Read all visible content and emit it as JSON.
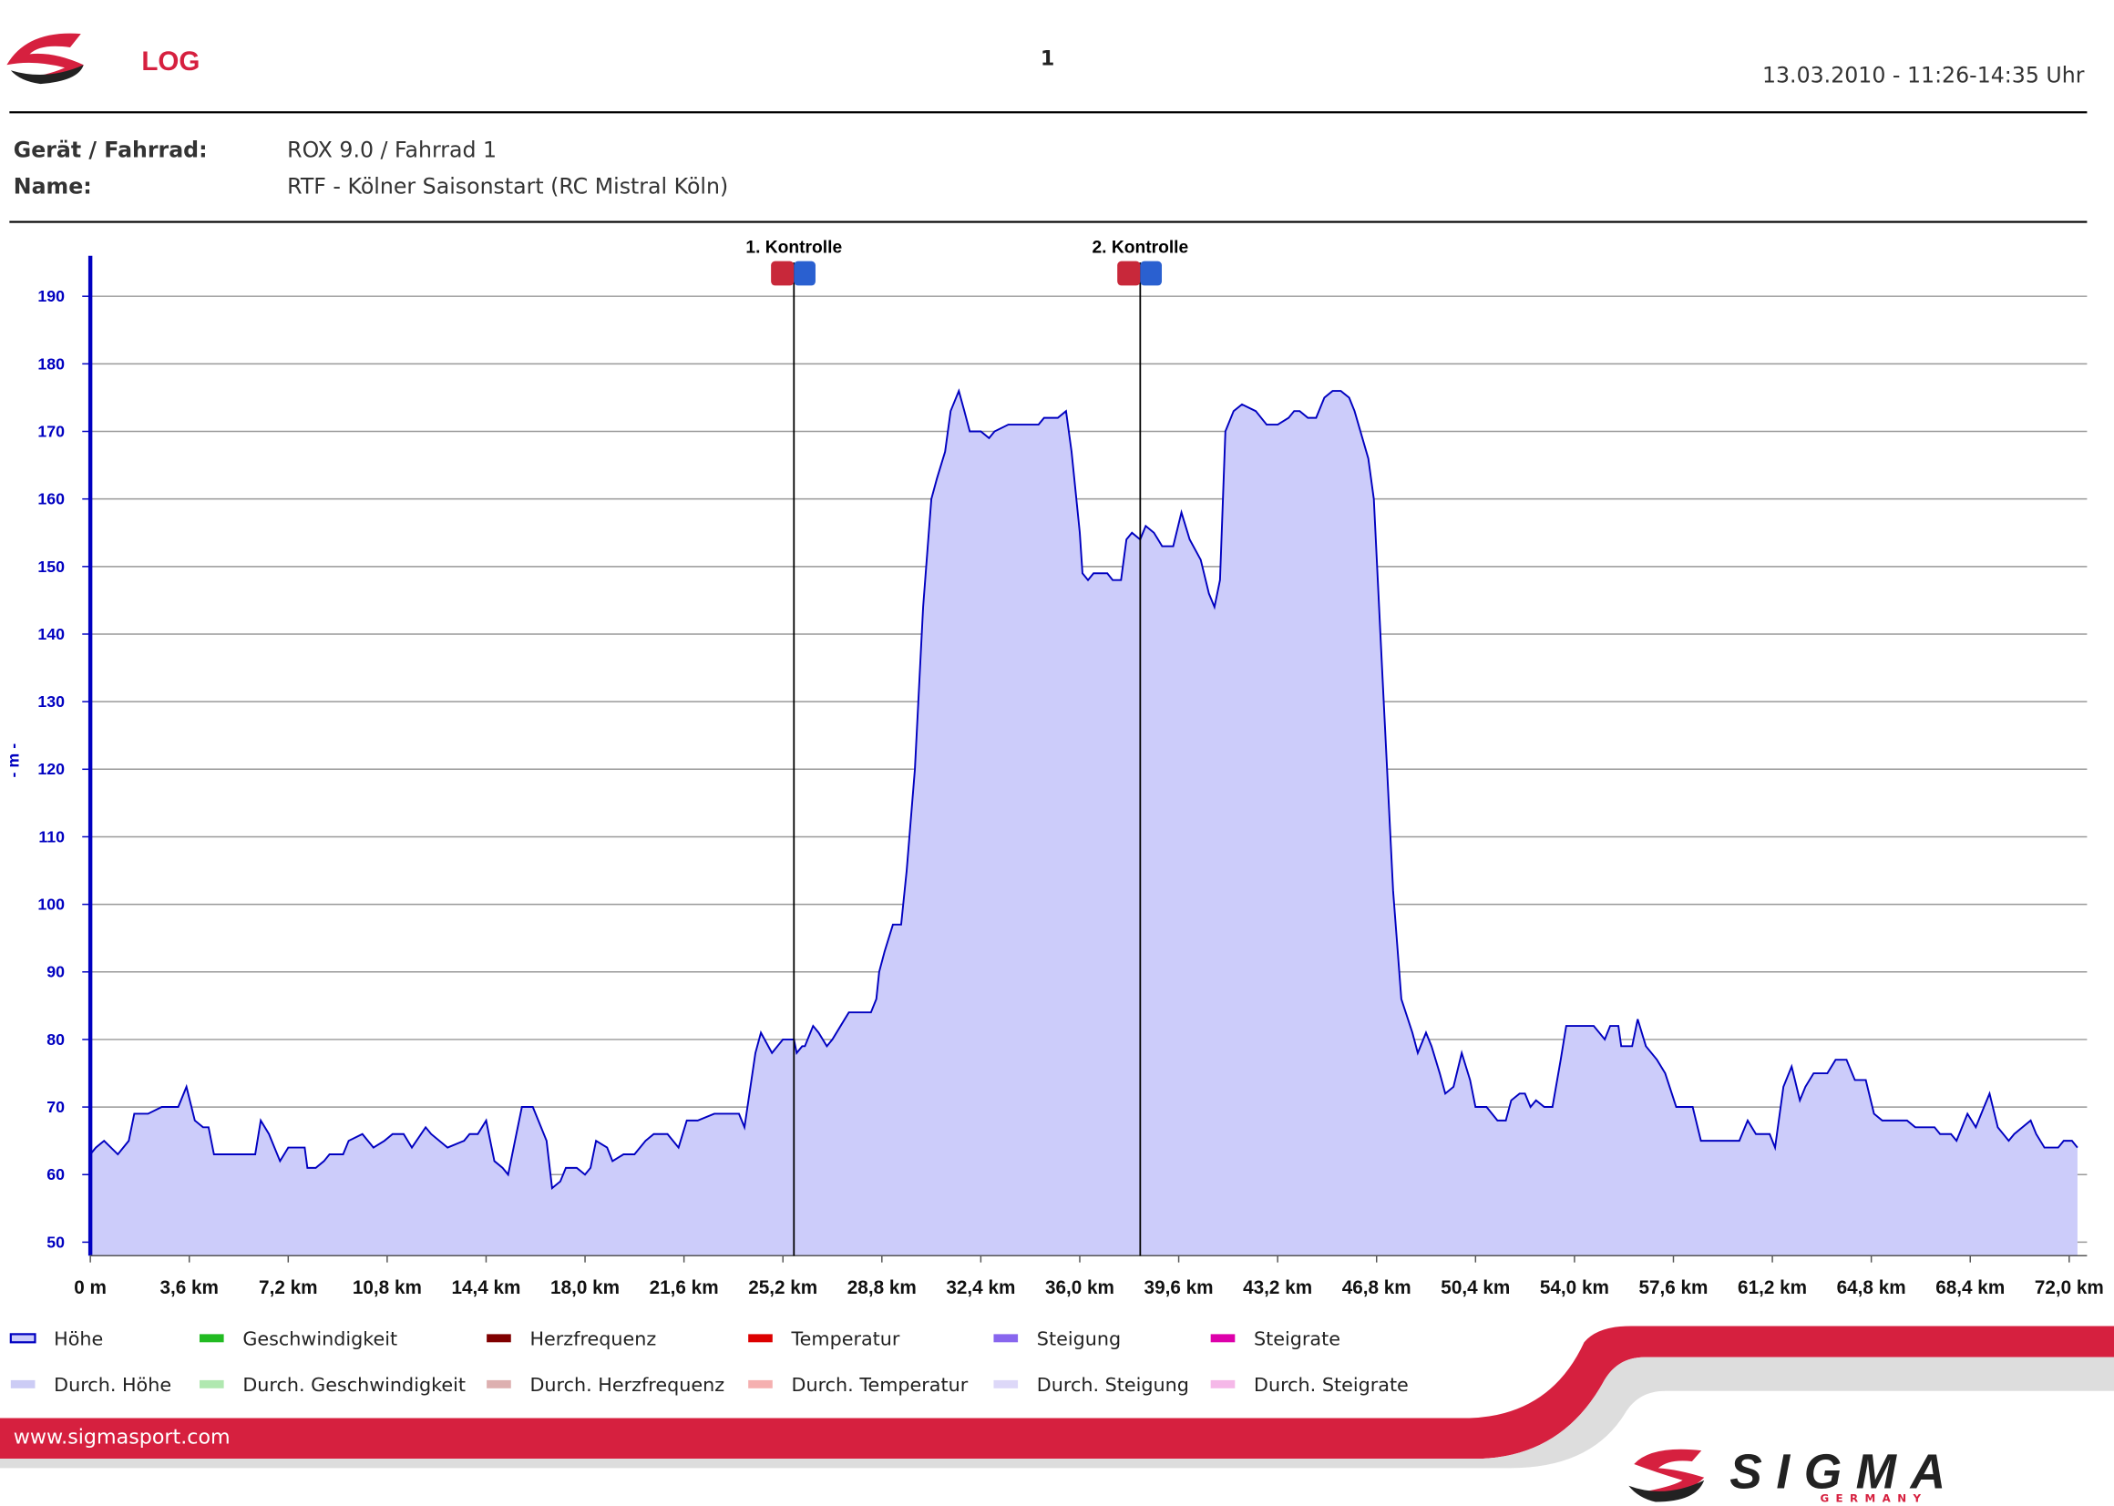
{
  "header": {
    "brand": "LOG",
    "page": "1",
    "date": "13.03.2010 - 11:26-14:35 Uhr"
  },
  "info": [
    {
      "label": "Gerät / Fahrrad:",
      "value": "ROX 9.0 / Fahrrad 1"
    },
    {
      "label": "Name:",
      "value": "RTF - Kölner Saisonstart (RC Mistral Köln)"
    }
  ],
  "chart_data": {
    "type": "area",
    "ylabel": "- m -",
    "xlim": [
      0,
      72.6
    ],
    "ylim": [
      48,
      196
    ],
    "yticks": [
      50,
      60,
      70,
      80,
      90,
      100,
      110,
      120,
      130,
      140,
      150,
      160,
      170,
      180,
      190
    ],
    "xticks": [
      {
        "value": 0,
        "label": "0 m"
      },
      {
        "value": 3.6,
        "label": "3,6 km"
      },
      {
        "value": 7.2,
        "label": "7,2 km"
      },
      {
        "value": 10.8,
        "label": "10,8 km"
      },
      {
        "value": 14.4,
        "label": "14,4 km"
      },
      {
        "value": 18,
        "label": "18,0 km"
      },
      {
        "value": 21.6,
        "label": "21,6 km"
      },
      {
        "value": 25.2,
        "label": "25,2 km"
      },
      {
        "value": 28.8,
        "label": "28,8 km"
      },
      {
        "value": 32.4,
        "label": "32,4 km"
      },
      {
        "value": 36,
        "label": "36,0 km"
      },
      {
        "value": 39.6,
        "label": "39,6 km"
      },
      {
        "value": 43.2,
        "label": "43,2 km"
      },
      {
        "value": 46.8,
        "label": "46,8 km"
      },
      {
        "value": 50.4,
        "label": "50,4 km"
      },
      {
        "value": 54,
        "label": "54,0 km"
      },
      {
        "value": 57.6,
        "label": "57,6 km"
      },
      {
        "value": 61.2,
        "label": "61,2 km"
      },
      {
        "value": 64.8,
        "label": "64,8 km"
      },
      {
        "value": 68.4,
        "label": "68,4 km"
      },
      {
        "value": 72,
        "label": "72,0 km"
      }
    ],
    "grid": true,
    "annotations": [
      {
        "x": 25.6,
        "text": "1. Kontrolle"
      },
      {
        "x": 38.2,
        "text": "2. Kontrolle"
      }
    ],
    "series": [
      {
        "name": "Höhe",
        "color": "#0000c0",
        "fill": "#ccccfa",
        "x": [
          0,
          0.2,
          0.5,
          1.0,
          1.4,
          1.6,
          2.1,
          2.6,
          3.2,
          3.5,
          3.8,
          4.1,
          4.3,
          4.5,
          5.1,
          6.0,
          6.2,
          6.5,
          6.7,
          6.9,
          7.2,
          7.8,
          7.9,
          8.2,
          8.5,
          8.7,
          9.2,
          9.4,
          9.9,
          10.3,
          10.7,
          11.0,
          11.4,
          11.7,
          12.2,
          12.4,
          13.0,
          13.6,
          13.8,
          14.1,
          14.4,
          14.5,
          14.7,
          15.0,
          15.2,
          15.5,
          15.7,
          16.1,
          16.3,
          16.6,
          16.8,
          17.1,
          17.3,
          17.7,
          18.0,
          18.2,
          18.4,
          18.8,
          19.0,
          19.4,
          19.8,
          20.2,
          20.5,
          21.0,
          21.4,
          21.7,
          22.1,
          22.7,
          23.6,
          23.8,
          24.2,
          24.4,
          24.8,
          25.2,
          25.6,
          25.7,
          25.9,
          26.0,
          26.3,
          26.5,
          26.8,
          27.0,
          27.3,
          27.6,
          28.4,
          28.6,
          28.7,
          28.9,
          29.2,
          29.5,
          29.7,
          30.0,
          30.3,
          30.6,
          30.8,
          31.1,
          31.3,
          31.6,
          31.8,
          32.0,
          32.4,
          32.7,
          32.9,
          33.4,
          34.5,
          34.7,
          35.2,
          35.5,
          35.7,
          36.0,
          36.1,
          36.3,
          36.5,
          37.0,
          37.2,
          37.5,
          37.7,
          37.9,
          38.2,
          38.4,
          38.7,
          39.0,
          39.4,
          39.7,
          40.0,
          40.4,
          40.7,
          40.9,
          41.1,
          41.3,
          41.6,
          41.9,
          42.4,
          42.8,
          43.2,
          43.6,
          43.8,
          44.0,
          44.3,
          44.6,
          44.9,
          45.2,
          45.5,
          45.8,
          46.0,
          46.5,
          46.7,
          47.0,
          47.4,
          47.7,
          48.1,
          48.3,
          48.6,
          48.8,
          49.1,
          49.3,
          49.6,
          49.9,
          50.2,
          50.4,
          50.8,
          51.2,
          51.5,
          51.7,
          52.0,
          52.2,
          52.4,
          52.6,
          52.9,
          53.2,
          53.5,
          53.7,
          54.1,
          54.7,
          55.1,
          55.3,
          55.6,
          55.7,
          56.1,
          56.3,
          56.6,
          57.0,
          57.3,
          57.7,
          58.3,
          58.6,
          60.0,
          60.3,
          60.6,
          61.1,
          61.3,
          61.6,
          61.9,
          62.2,
          62.4,
          62.7,
          63.2,
          63.5,
          63.9,
          64.2,
          64.6,
          64.9,
          65.2,
          66.1,
          66.4,
          66.9,
          67.1,
          67.3,
          67.7,
          67.9,
          68.3,
          68.6,
          68.9,
          69.1,
          69.4,
          69.8,
          70.0,
          70.3,
          70.6,
          70.8,
          71.1,
          71.6,
          71.8,
          72.1,
          72.3
        ],
        "values": [
          63,
          64,
          65,
          63,
          65,
          69,
          69,
          70,
          70,
          73,
          68,
          67,
          67,
          63,
          63,
          63,
          68,
          66,
          64,
          62,
          64,
          64,
          61,
          61,
          62,
          63,
          63,
          65,
          66,
          64,
          65,
          66,
          66,
          64,
          67,
          66,
          64,
          65,
          66,
          66,
          68,
          66,
          62,
          61,
          60,
          66,
          70,
          70,
          68,
          65,
          58,
          59,
          61,
          61,
          60,
          61,
          65,
          64,
          62,
          63,
          63,
          65,
          66,
          66,
          64,
          68,
          68,
          69,
          69,
          67,
          78,
          81,
          78,
          80,
          80,
          78,
          79,
          79,
          82,
          81,
          79,
          80,
          82,
          84,
          84,
          86,
          90,
          93,
          97,
          97,
          105,
          120,
          144,
          160,
          163,
          167,
          173,
          176,
          173,
          170,
          170,
          169,
          170,
          171,
          171,
          172,
          172,
          173,
          167,
          155,
          149,
          148,
          149,
          149,
          148,
          148,
          154,
          155,
          154,
          156,
          155,
          153,
          153,
          158,
          154,
          151,
          146,
          144,
          148,
          170,
          173,
          174,
          173,
          171,
          171,
          172,
          173,
          173,
          172,
          172,
          175,
          176,
          176,
          175,
          173,
          166,
          160,
          135,
          102,
          86,
          81,
          78,
          81,
          79,
          75,
          72,
          73,
          78,
          74,
          70,
          70,
          68,
          68,
          71,
          72,
          72,
          70,
          71,
          70,
          70,
          77,
          82,
          82,
          82,
          80,
          82,
          82,
          79,
          79,
          83,
          79,
          77,
          75,
          70,
          70,
          65,
          65,
          68,
          66,
          66,
          64,
          73,
          76,
          71,
          73,
          75,
          75,
          77,
          77,
          74,
          74,
          69,
          68,
          68,
          67,
          67,
          67,
          66,
          66,
          65,
          69,
          67,
          70,
          72,
          67,
          65,
          66,
          67,
          68,
          66,
          64,
          64,
          65,
          65,
          64
        ]
      }
    ],
    "legend_items": [
      {
        "name": "Geschwindigkeit",
        "color": "#22bb22"
      },
      {
        "name": "Herzfrequenz",
        "color": "#800000"
      },
      {
        "name": "Temperatur",
        "color": "#dd0000"
      },
      {
        "name": "Steigung",
        "color": "#8866ee"
      },
      {
        "name": "Steigrate",
        "color": "#dd00aa"
      },
      {
        "name": "Durch. Höhe",
        "color": "#ccccf5"
      },
      {
        "name": "Durch. Geschwindigkeit",
        "color": "#b0e8b0"
      },
      {
        "name": "Durch. Herzfrequenz",
        "color": "#ddb0b0"
      },
      {
        "name": "Durch. Temperatur",
        "color": "#f5b0b0"
      },
      {
        "name": "Durch. Steigung",
        "color": "#ddd8f8"
      },
      {
        "name": "Durch. Steigrate",
        "color": "#f5b8e8"
      }
    ]
  },
  "footer": {
    "url": "www.sigmasport.com",
    "logo": "SIGMA",
    "sub": "GERMANY"
  }
}
